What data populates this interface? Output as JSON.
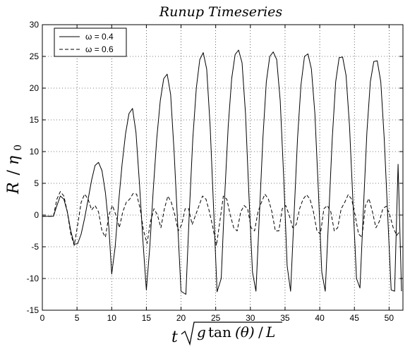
{
  "chart_data": {
    "type": "line",
    "title": "Runup Timeseries",
    "xlabel": "t √(g tan(θ)/L)",
    "xlabel_parts": {
      "t": "t",
      "g": "g",
      "tan": "tan",
      "theta": "(θ)",
      "over": "/",
      "L": "L"
    },
    "ylabel": "R / η",
    "ylabel_parts": {
      "R": "R",
      "slash": "/",
      "eta": "η",
      "sub": "0"
    },
    "xlim": [
      0,
      52
    ],
    "ylim": [
      -15,
      30
    ],
    "xticks": [
      0,
      5,
      10,
      15,
      20,
      25,
      30,
      35,
      40,
      45,
      50
    ],
    "yticks": [
      -15,
      -10,
      -5,
      0,
      5,
      10,
      15,
      20,
      25,
      30
    ],
    "grid": true,
    "legend_position": "top-left",
    "series": [
      {
        "name": "ω = 0.4",
        "style": "solid",
        "color": "#000000",
        "x": [
          0,
          1.6,
          2.0,
          2.6,
          3.1,
          3.6,
          4.1,
          4.6,
          5.1,
          5.6,
          6.1,
          6.6,
          7.1,
          7.6,
          8.1,
          8.6,
          9.1,
          9.6,
          10.0,
          10.5,
          11.0,
          11.5,
          12.0,
          12.5,
          13.0,
          13.5,
          14.0,
          14.5,
          15.0,
          15.5,
          16.0,
          16.5,
          17.0,
          17.5,
          18.0,
          18.5,
          19.0,
          19.5,
          20.0,
          20.7,
          21.2,
          21.7,
          22.2,
          22.7,
          23.2,
          23.7,
          24.2,
          24.7,
          25.2,
          25.8,
          26.3,
          26.8,
          27.3,
          27.8,
          28.3,
          28.8,
          29.3,
          29.8,
          30.3,
          30.8,
          31.3,
          31.8,
          32.3,
          32.8,
          33.3,
          33.8,
          34.3,
          34.8,
          35.3,
          35.8,
          36.3,
          36.8,
          37.3,
          37.8,
          38.3,
          38.8,
          39.3,
          39.8,
          40.3,
          40.8,
          41.3,
          41.8,
          42.3,
          42.8,
          43.3,
          43.8,
          44.3,
          44.8,
          45.3,
          45.8,
          46.3,
          46.8,
          47.3,
          47.8,
          48.3,
          48.8,
          49.3,
          49.8,
          50.3,
          50.8,
          51.3,
          51.8
        ],
        "y": [
          -0.2,
          -0.2,
          1.2,
          3.0,
          2.5,
          0.5,
          -2.5,
          -4.6,
          -4.5,
          -3.0,
          -0.5,
          2.5,
          5.5,
          7.8,
          8.3,
          7.0,
          3.5,
          -2.0,
          -9.3,
          -5.0,
          2.0,
          8.0,
          12.8,
          16.0,
          16.8,
          13.0,
          5.0,
          -4.0,
          -11.8,
          -5.0,
          4.0,
          12.0,
          18.0,
          21.5,
          22.2,
          19.0,
          10.0,
          -1.0,
          -12.0,
          -12.5,
          0.5,
          12.0,
          20.0,
          24.5,
          25.6,
          23.0,
          14.0,
          1.0,
          -12.1,
          -10.0,
          3.0,
          14.0,
          21.5,
          25.3,
          26.0,
          24.0,
          16.0,
          3.0,
          -9.0,
          -12.0,
          0.0,
          12.0,
          21.0,
          25.0,
          25.7,
          24.5,
          18.0,
          6.0,
          -8.0,
          -12.0,
          0.0,
          12.0,
          20.5,
          25.0,
          25.4,
          23.0,
          16.0,
          4.0,
          -9.0,
          -12.0,
          0.0,
          12.0,
          21.0,
          24.8,
          24.9,
          22.0,
          14.0,
          2.0,
          -10.0,
          -11.5,
          1.0,
          13.0,
          21.0,
          24.2,
          24.3,
          21.0,
          12.0,
          0.0,
          -11.8,
          -12.0,
          8.0,
          -12.0
        ]
      },
      {
        "name": "ω = 0.6",
        "style": "dashed",
        "color": "#000000",
        "x": [
          0,
          1.6,
          2.1,
          2.6,
          3.1,
          3.6,
          4.1,
          4.6,
          5.1,
          5.6,
          6.1,
          6.6,
          7.1,
          7.6,
          8.1,
          8.6,
          9.1,
          9.6,
          10.1,
          10.6,
          11.1,
          11.6,
          12.1,
          12.6,
          13.1,
          13.6,
          14.1,
          14.6,
          15.1,
          15.6,
          16.1,
          16.6,
          17.1,
          17.6,
          18.1,
          18.6,
          19.1,
          19.6,
          20.1,
          20.6,
          21.1,
          21.6,
          22.1,
          22.6,
          23.1,
          23.6,
          24.1,
          24.6,
          25.1,
          25.6,
          26.1,
          26.6,
          27.1,
          27.6,
          28.1,
          28.6,
          29.1,
          29.6,
          30.1,
          30.6,
          31.1,
          31.6,
          32.1,
          32.6,
          33.1,
          33.6,
          34.1,
          34.6,
          35.1,
          35.6,
          36.1,
          36.6,
          37.1,
          37.6,
          38.1,
          38.6,
          39.1,
          39.6,
          40.1,
          40.6,
          41.1,
          41.6,
          42.1,
          42.6,
          43.1,
          43.6,
          44.1,
          44.6,
          45.1,
          45.6,
          46.1,
          46.6,
          47.1,
          47.6,
          48.1,
          48.6,
          49.1,
          49.6,
          50.1,
          50.6,
          51.1,
          51.6
        ],
        "y": [
          -0.2,
          -0.2,
          2.5,
          3.7,
          3.0,
          0.5,
          -3.0,
          -4.8,
          -1.5,
          2.0,
          3.3,
          2.5,
          0.8,
          1.5,
          0.5,
          -2.5,
          -3.5,
          0.0,
          1.5,
          0.0,
          -2.0,
          0.5,
          2.0,
          2.5,
          3.4,
          3.3,
          1.0,
          -2.5,
          -4.5,
          -1.0,
          1.0,
          0.0,
          -2.0,
          1.0,
          3.0,
          2.0,
          0.0,
          -2.5,
          -1.5,
          1.0,
          1.0,
          -1.5,
          0.0,
          1.5,
          3.0,
          2.5,
          0.5,
          -2.0,
          -4.8,
          -1.0,
          3.0,
          2.5,
          0.0,
          -2.0,
          -2.5,
          0.5,
          1.5,
          1.0,
          -2.0,
          -2.5,
          0.5,
          2.0,
          3.3,
          2.5,
          0.5,
          -2.5,
          -2.5,
          1.0,
          1.5,
          0.0,
          -2.0,
          -1.5,
          1.0,
          2.5,
          3.2,
          2.5,
          0.5,
          -2.5,
          -3.0,
          1.0,
          1.5,
          0.5,
          -2.5,
          -2.0,
          1.0,
          2.0,
          3.2,
          2.5,
          0.0,
          -3.0,
          -3.5,
          1.5,
          2.6,
          0.5,
          -2.0,
          -1.0,
          1.0,
          1.4,
          0.0,
          -2.0,
          -3.2,
          -2.5
        ]
      }
    ]
  }
}
